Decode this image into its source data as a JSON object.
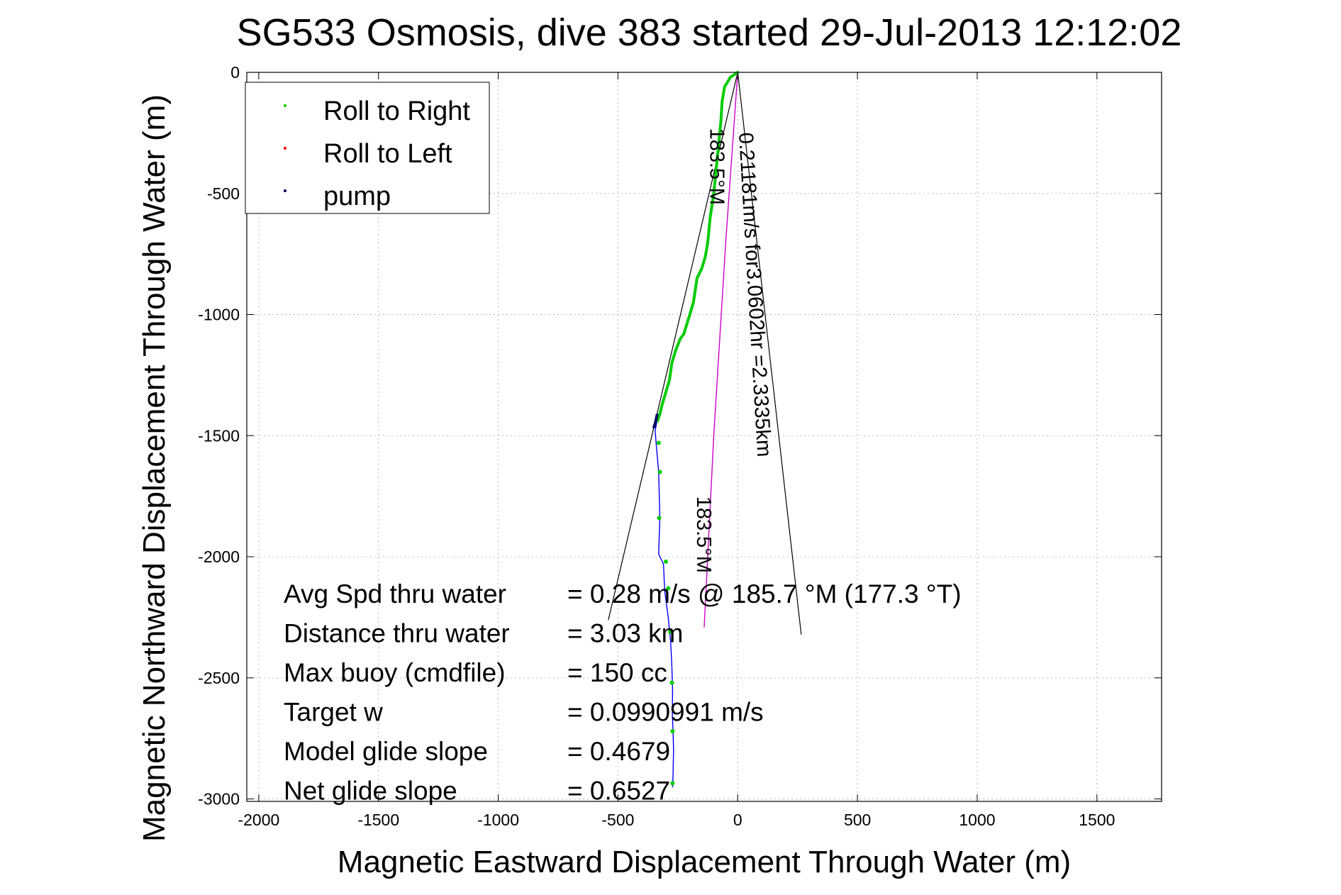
{
  "chart_data": {
    "type": "line",
    "title": "SG533 Osmosis, dive 383 started 29-Jul-2013 12:12:02",
    "xlabel": "Magnetic Eastward Displacement Through Water (m)",
    "ylabel": "Magnetic Northward Displacement Through Water (m)",
    "xlim": [
      -2050,
      1770
    ],
    "ylim": [
      -3010,
      0
    ],
    "xticks": [
      -2000,
      -1500,
      -1000,
      -500,
      0,
      500,
      1000,
      1500
    ],
    "yticks": [
      0,
      -500,
      -1000,
      -1500,
      -2000,
      -2500,
      -3000
    ],
    "xtick_labels": [
      "-2000",
      "-1500",
      "-1000",
      "-500",
      "0",
      "500",
      "1000",
      "1500"
    ],
    "ytick_labels": [
      "0",
      "-500",
      "-1000",
      "-1500",
      "-2000",
      "-2500",
      "-3000"
    ],
    "grid": true,
    "legend_position": "top-left",
    "legend": [
      "Roll to Right",
      "Roll to Left",
      "pump"
    ],
    "colors": {
      "roll_right": "#00cc00",
      "roll_left": "#ff0000",
      "pump": "#000066",
      "track": "#0000ff",
      "current": "#cc00cc",
      "cone": "#000000"
    },
    "series": [
      {
        "name": "Roll to Right",
        "x": [
          0,
          -30,
          -55,
          -65,
          -70,
          -80,
          -90,
          -100,
          -115,
          -125,
          -135,
          -150,
          -170,
          -185,
          -200,
          -225,
          -240,
          -260,
          -275,
          -285,
          -300,
          -315,
          -325,
          -335
        ],
        "y": [
          0,
          -20,
          -60,
          -120,
          -200,
          -300,
          -400,
          -500,
          -600,
          -700,
          -760,
          -810,
          -850,
          -950,
          -1000,
          -1080,
          -1100,
          -1150,
          -1200,
          -1270,
          -1320,
          -1370,
          -1410,
          -1440
        ]
      },
      {
        "name": "Roll to Left",
        "x": [],
        "y": []
      },
      {
        "name": "pump",
        "x": [
          -350,
          -345,
          -340,
          -337
        ],
        "y": [
          -1465,
          -1450,
          -1430,
          -1415
        ]
      },
      {
        "name": "track",
        "x": [
          -337,
          -345,
          -340,
          -330,
          -325,
          -330,
          -310,
          -305,
          -290,
          -280,
          -275,
          -272,
          -273,
          -270,
          -268,
          -270,
          -272
        ],
        "y": [
          -1440,
          -1480,
          -1540,
          -1650,
          -1840,
          -1990,
          -2030,
          -2140,
          -2250,
          -2350,
          -2450,
          -2550,
          -2650,
          -2720,
          -2800,
          -2900,
          -2950
        ]
      },
      {
        "name": "current",
        "x": [
          0,
          -50,
          -100,
          -140
        ],
        "y": [
          0,
          -700,
          -1500,
          -2290
        ]
      },
      {
        "name": "cone-left",
        "x": [
          0,
          -540
        ],
        "y": [
          0,
          -2260
        ]
      },
      {
        "name": "cone-right",
        "x": [
          0,
          265
        ],
        "y": [
          0,
          -2320
        ]
      }
    ],
    "markers": {
      "x": [
        -330,
        -325,
        -328,
        -300,
        -290,
        -282,
        -275,
        -272,
        -272
      ],
      "y": [
        -1530,
        -1650,
        -1840,
        -2020,
        -2130,
        -2310,
        -2520,
        -2720,
        -2935
      ]
    },
    "annotations": [
      {
        "id": "current",
        "text": "0.21181m/s for3.0602hr =2.3335km",
        "x": 5,
        "y": -250,
        "angle": 86.7
      },
      {
        "id": "heading-top",
        "text": "183.5°M",
        "x": -115,
        "y": -230,
        "angle": 90
      },
      {
        "id": "heading-bottom",
        "text": "183.5°M",
        "x": -170,
        "y": -1750,
        "angle": 90
      }
    ],
    "stats": [
      {
        "label": "Avg Spd thru water",
        "value": "=  0.28 m/s @ 185.7 °M (177.3 °T)"
      },
      {
        "label": "Distance thru water",
        "value": "=  3.03 km"
      },
      {
        "label": "Max buoy (cmdfile)",
        "value": "= 150 cc"
      },
      {
        "label": "Target w",
        "value": "= 0.0990991 m/s"
      },
      {
        "label": "Model glide slope",
        "value": "= 0.4679"
      },
      {
        "label": "Net glide slope",
        "value": "= 0.6527"
      }
    ]
  }
}
